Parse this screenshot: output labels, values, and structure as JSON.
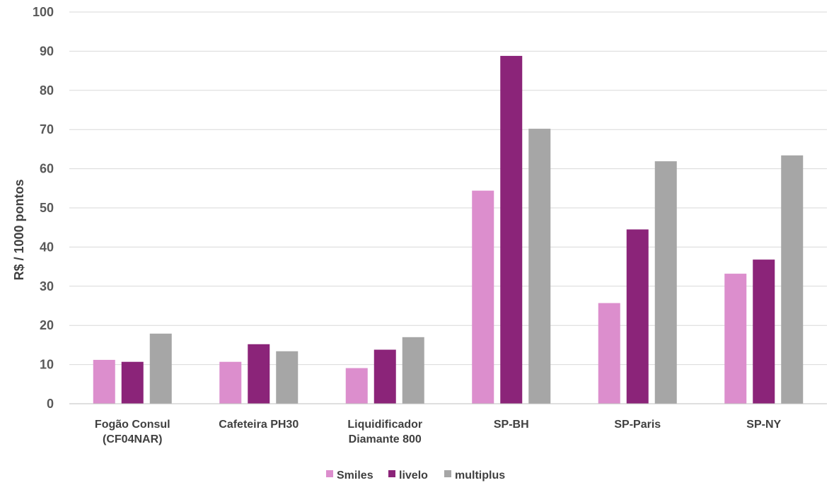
{
  "chart_data": {
    "type": "bar",
    "title": "",
    "xlabel": "",
    "ylabel": "R$ / 1000 pontos",
    "ylim": [
      0,
      100
    ],
    "yticks": [
      0,
      10,
      20,
      30,
      40,
      50,
      60,
      70,
      80,
      90,
      100
    ],
    "grid": true,
    "legend_position": "bottom",
    "categories": [
      [
        "Fogão Consul",
        "(CF04NAR)"
      ],
      [
        "Cafeteira PH30"
      ],
      [
        "Liquidificador",
        "Diamante 800"
      ],
      [
        "SP-BH"
      ],
      [
        "SP-Paris"
      ],
      [
        "SP-NY"
      ]
    ],
    "series": [
      {
        "name": "Smiles",
        "color": "#dc8ecd",
        "values": [
          11.2,
          10.7,
          9.1,
          54.4,
          25.7,
          33.2
        ]
      },
      {
        "name": "livelo",
        "color": "#8b2479",
        "values": [
          10.7,
          15.2,
          13.8,
          88.8,
          44.5,
          36.8
        ]
      },
      {
        "name": "multiplus",
        "color": "#a6a6a6",
        "values": [
          17.9,
          13.4,
          17.0,
          70.2,
          61.9,
          63.4
        ]
      }
    ]
  }
}
